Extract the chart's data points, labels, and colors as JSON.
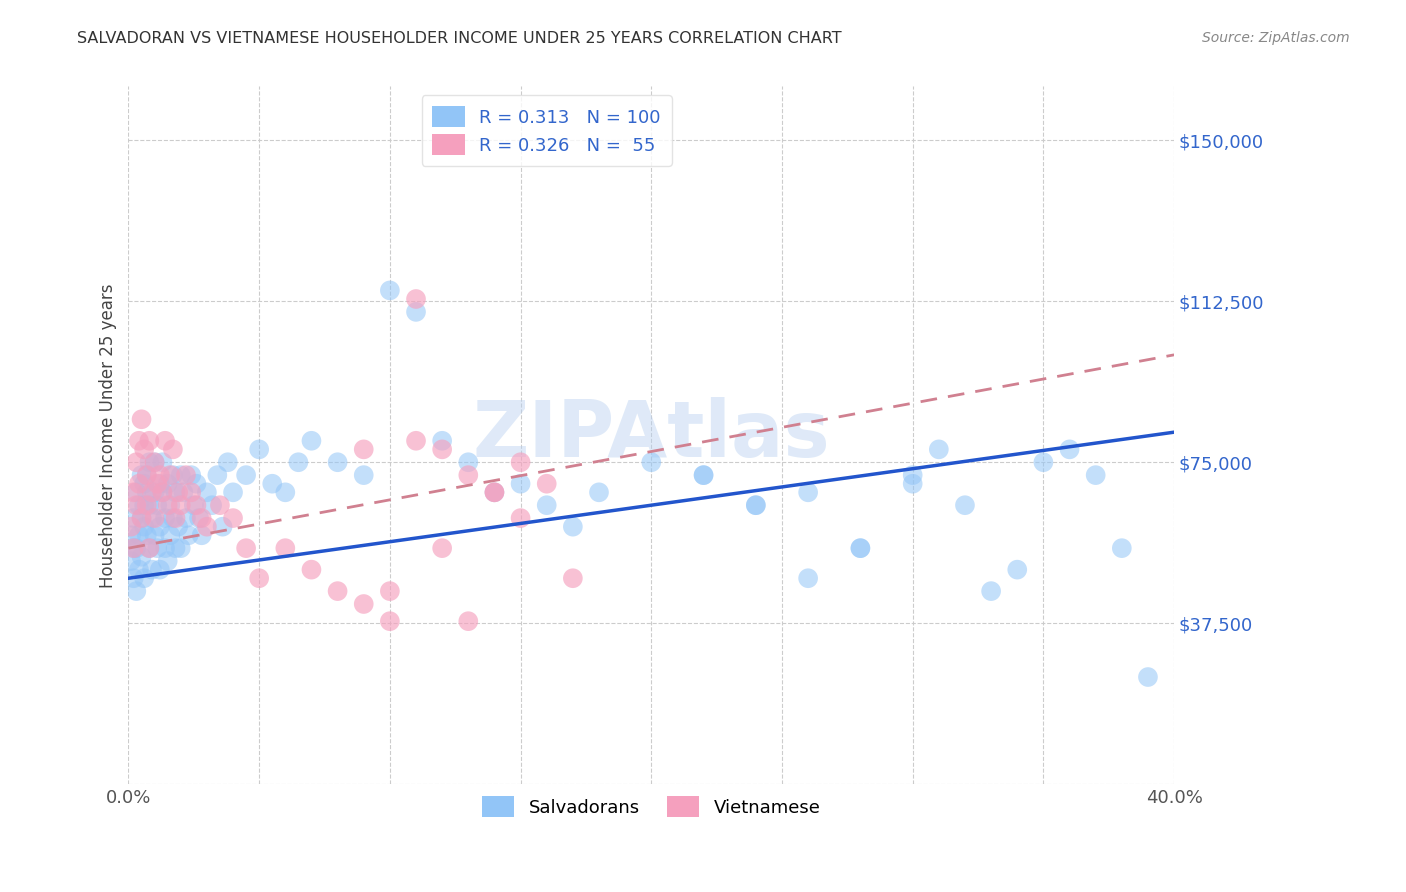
{
  "title": "SALVADORAN VS VIETNAMESE HOUSEHOLDER INCOME UNDER 25 YEARS CORRELATION CHART",
  "source": "Source: ZipAtlas.com",
  "ylabel": "Householder Income Under 25 years",
  "x_min": 0.0,
  "x_max": 0.4,
  "y_min": 0,
  "y_max": 162500,
  "yticks": [
    0,
    37500,
    75000,
    112500,
    150000
  ],
  "ytick_labels": [
    "",
    "$37,500",
    "$75,000",
    "$112,500",
    "$150,000"
  ],
  "xticks": [
    0.0,
    0.05,
    0.1,
    0.15,
    0.2,
    0.25,
    0.3,
    0.35,
    0.4
  ],
  "watermark": "ZIPAtlas",
  "salvadorans_color": "#92c5f7",
  "vietnamese_color": "#f5a0be",
  "trend_blue_color": "#2255cc",
  "trend_pink_color": "#d08090",
  "salvadorans_R": 0.313,
  "salvadorans_N": 100,
  "vietnamese_R": 0.326,
  "vietnamese_N": 55,
  "sal_trend_x0": 0.0,
  "sal_trend_y0": 48000,
  "sal_trend_x1": 0.4,
  "sal_trend_y1": 82000,
  "viet_trend_x0": 0.0,
  "viet_trend_y0": 55000,
  "viet_trend_x1": 0.4,
  "viet_trend_y1": 100000,
  "salvadorans_x": [
    0.001,
    0.001,
    0.002,
    0.002,
    0.002,
    0.003,
    0.003,
    0.003,
    0.004,
    0.004,
    0.004,
    0.005,
    0.005,
    0.005,
    0.006,
    0.006,
    0.006,
    0.006,
    0.007,
    0.007,
    0.007,
    0.008,
    0.008,
    0.008,
    0.009,
    0.009,
    0.01,
    0.01,
    0.01,
    0.011,
    0.011,
    0.012,
    0.012,
    0.012,
    0.013,
    0.013,
    0.014,
    0.014,
    0.015,
    0.015,
    0.016,
    0.016,
    0.017,
    0.017,
    0.018,
    0.018,
    0.019,
    0.02,
    0.02,
    0.021,
    0.022,
    0.023,
    0.024,
    0.025,
    0.026,
    0.027,
    0.028,
    0.03,
    0.032,
    0.034,
    0.036,
    0.038,
    0.04,
    0.045,
    0.05,
    0.055,
    0.06,
    0.065,
    0.07,
    0.08,
    0.09,
    0.1,
    0.11,
    0.12,
    0.13,
    0.14,
    0.15,
    0.16,
    0.17,
    0.18,
    0.2,
    0.22,
    0.24,
    0.26,
    0.28,
    0.3,
    0.31,
    0.32,
    0.33,
    0.34,
    0.35,
    0.36,
    0.37,
    0.38,
    0.39,
    0.28,
    0.3,
    0.26,
    0.24,
    0.22
  ],
  "salvadorans_y": [
    58000,
    52000,
    62000,
    48000,
    55000,
    68000,
    55000,
    45000,
    65000,
    58000,
    50000,
    72000,
    62000,
    53000,
    70000,
    60000,
    65000,
    48000,
    68000,
    58000,
    72000,
    65000,
    55000,
    75000,
    62000,
    50000,
    68000,
    58000,
    75000,
    65000,
    55000,
    70000,
    60000,
    50000,
    68000,
    75000,
    62000,
    55000,
    70000,
    52000,
    65000,
    58000,
    72000,
    62000,
    68000,
    55000,
    60000,
    72000,
    55000,
    68000,
    62000,
    58000,
    72000,
    65000,
    70000,
    62000,
    58000,
    68000,
    65000,
    72000,
    60000,
    75000,
    68000,
    72000,
    78000,
    70000,
    68000,
    75000,
    80000,
    75000,
    72000,
    115000,
    110000,
    80000,
    75000,
    68000,
    70000,
    65000,
    60000,
    68000,
    75000,
    72000,
    65000,
    68000,
    55000,
    72000,
    78000,
    65000,
    45000,
    50000,
    75000,
    78000,
    72000,
    55000,
    25000,
    55000,
    70000,
    48000,
    65000,
    72000
  ],
  "vietnamese_x": [
    0.001,
    0.002,
    0.002,
    0.003,
    0.003,
    0.004,
    0.004,
    0.005,
    0.005,
    0.006,
    0.007,
    0.007,
    0.008,
    0.008,
    0.009,
    0.01,
    0.01,
    0.011,
    0.012,
    0.013,
    0.014,
    0.015,
    0.016,
    0.017,
    0.018,
    0.019,
    0.02,
    0.022,
    0.024,
    0.026,
    0.028,
    0.03,
    0.035,
    0.04,
    0.045,
    0.05,
    0.06,
    0.07,
    0.08,
    0.09,
    0.1,
    0.11,
    0.12,
    0.13,
    0.14,
    0.15,
    0.16,
    0.17,
    0.11,
    0.12,
    0.13,
    0.1,
    0.09,
    0.14,
    0.15
  ],
  "vietnamese_y": [
    60000,
    68000,
    55000,
    75000,
    65000,
    80000,
    70000,
    85000,
    62000,
    78000,
    72000,
    65000,
    80000,
    55000,
    68000,
    75000,
    62000,
    70000,
    72000,
    68000,
    80000,
    65000,
    72000,
    78000,
    62000,
    68000,
    65000,
    72000,
    68000,
    65000,
    62000,
    60000,
    65000,
    62000,
    55000,
    48000,
    55000,
    50000,
    45000,
    42000,
    45000,
    113000,
    78000,
    72000,
    68000,
    75000,
    70000,
    48000,
    80000,
    55000,
    38000,
    38000,
    78000,
    68000,
    62000
  ]
}
